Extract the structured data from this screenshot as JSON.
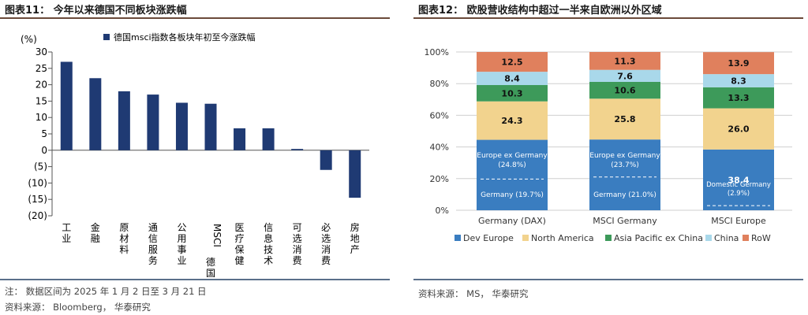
{
  "left": {
    "title": "图表11：   今年以来德国不同板块涨跌幅",
    "legend": "德国msci指数各板块年初至今涨跌幅",
    "unit": "(%)",
    "note": "注：  数据区间为 2025 年 1 月 2 日至 3 月 21 日",
    "source": "资料来源：  Bloomberg，  华泰研究"
  },
  "right": {
    "title": "图表12：   欧股营收结构中超过一半来自欧洲以外区域",
    "source": "资料来源：  MS，  华泰研究",
    "inner_labels": [
      {
        "line1": "Europe ex Germany",
        "line2": "(24.8%)",
        "lower": "Germany (19.7%)"
      },
      {
        "line1": "Europe ex Germany",
        "line2": "(23.7%)",
        "lower": "Germany (21.0%)"
      },
      {
        "line1": "Domestic Germany",
        "line2": "(2.9%)",
        "lower": ""
      }
    ]
  },
  "colors": {
    "bar": "#1f3a73",
    "dev_europe": "#3a7dc0",
    "north_america": "#f2d38e",
    "asia_pacific": "#3d9a5a",
    "china": "#a9d8ea",
    "row": "#e0805d"
  },
  "chart_data": [
    {
      "type": "bar",
      "categories": [
        "工业",
        "金融",
        "原材料",
        "通信服务",
        "公用事业",
        "MSCI德国",
        "医疗保健",
        "信息技术",
        "可选消费",
        "必选消费",
        "房地产"
      ],
      "series": [
        {
          "name": "德国msci指数各板块年初至今涨跌幅",
          "values": [
            27,
            22,
            18,
            17,
            14.5,
            14.2,
            6.7,
            6.7,
            0.4,
            -6,
            -14.5
          ]
        }
      ],
      "ylabel": "(%)",
      "ylim": [
        -20,
        30
      ],
      "yticks": [
        30,
        25,
        20,
        15,
        10,
        5,
        0,
        -5,
        -10,
        -15,
        -20
      ],
      "ytick_labels": [
        "30",
        "25",
        "20",
        "15",
        "10",
        "5",
        "0",
        "(5)",
        "(10)",
        "(15)",
        "(20)"
      ]
    },
    {
      "type": "bar",
      "stacked": true,
      "categories": [
        "Germany (DAX)",
        "MSCI Germany",
        "MSCI Europe"
      ],
      "series": [
        {
          "name": "Dev Europe",
          "values": [
            44.5,
            44.7,
            38.4
          ],
          "labels": [
            "",
            "",
            "38.4"
          ]
        },
        {
          "name": "North America",
          "values": [
            24.3,
            25.8,
            26.0
          ],
          "labels": [
            "24.3",
            "25.8",
            "26.0"
          ]
        },
        {
          "name": "Asia Pacific ex China",
          "values": [
            10.3,
            10.6,
            13.3
          ],
          "labels": [
            "10.3",
            "10.6",
            "13.3"
          ]
        },
        {
          "name": "China",
          "values": [
            8.4,
            7.6,
            8.3
          ],
          "labels": [
            "8.4",
            "7.6",
            "8.3"
          ]
        },
        {
          "name": "RoW",
          "values": [
            12.5,
            11.3,
            13.9
          ],
          "labels": [
            "12.5",
            "11.3",
            "13.9"
          ]
        }
      ],
      "ylim": [
        0,
        100
      ],
      "ytick_labels": [
        "0%",
        "20%",
        "40%",
        "60%",
        "80%",
        "100%"
      ],
      "legend": "bottom",
      "grid": true
    }
  ]
}
